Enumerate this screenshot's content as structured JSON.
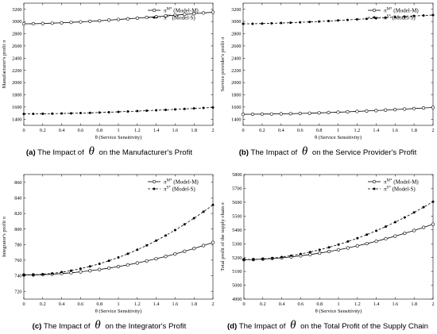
{
  "chart_data": [
    {
      "type": "line",
      "panel_label": "(a)",
      "caption_prefix": "The Impact of",
      "caption_symbol": "θ",
      "caption_suffix": "on the Manufacturer's Profit",
      "xlabel": "θ (Service Sensitivity)",
      "ylabel": "Manufacturer's profit π",
      "xlim": [
        0,
        2
      ],
      "ylim": [
        1300,
        3300
      ],
      "xticks": [
        "0",
        "0.2",
        "0.4",
        "0.6",
        "0.8",
        "1",
        "1.2",
        "1.4",
        "1.6",
        "1.8",
        "2"
      ],
      "yticks": [
        "1400",
        "1600",
        "1800",
        "2000",
        "2200",
        "2400",
        "2600",
        "2800",
        "3000",
        "3200"
      ],
      "legend_position": "top-right",
      "x": [
        0,
        0.1,
        0.2,
        0.3,
        0.4,
        0.5,
        0.6,
        0.7,
        0.8,
        0.9,
        1.0,
        1.1,
        1.2,
        1.3,
        1.4,
        1.5,
        1.6,
        1.7,
        1.8,
        1.9,
        2.0
      ],
      "series": [
        {
          "name": "π^M* (Model-M)",
          "style": "solid",
          "marker": "open-circle",
          "color": "#000000",
          "values": [
            2962,
            2963,
            2967,
            2973,
            2979,
            2986,
            2994,
            3003,
            3012,
            3022,
            3033,
            3044,
            3055,
            3067,
            3078,
            3091,
            3103,
            3116,
            3128,
            3140,
            3152
          ]
        },
        {
          "name": "π^S* (Model-S)",
          "style": "dashed",
          "marker": "filled-dot",
          "color": "#000000",
          "values": [
            1487,
            1488,
            1490,
            1492,
            1494,
            1497,
            1501,
            1505,
            1510,
            1515,
            1521,
            1527,
            1533,
            1540,
            1547,
            1554,
            1561,
            1569,
            1577,
            1585,
            1593
          ]
        }
      ]
    },
    {
      "type": "line",
      "panel_label": "(b)",
      "caption_prefix": "The Impact of",
      "caption_symbol": "θ",
      "caption_suffix": "on the Service Provider's Profit",
      "xlabel": "θ (Service Sensitivity)",
      "ylabel": "Service provider's profit π",
      "xlim": [
        0,
        2
      ],
      "ylim": [
        1300,
        3300
      ],
      "xticks": [
        "0",
        "0.2",
        "0.4",
        "0.6",
        "0.8",
        "1",
        "1.2",
        "1.4",
        "1.6",
        "1.8",
        "2"
      ],
      "yticks": [
        "1400",
        "1600",
        "1800",
        "2000",
        "2200",
        "2400",
        "2600",
        "2800",
        "3000",
        "3200"
      ],
      "legend_position": "top-right",
      "x": [
        0,
        0.1,
        0.2,
        0.3,
        0.4,
        0.5,
        0.6,
        0.7,
        0.8,
        0.9,
        1.0,
        1.1,
        1.2,
        1.3,
        1.4,
        1.5,
        1.6,
        1.7,
        1.8,
        1.9,
        2.0
      ],
      "series": [
        {
          "name": "π^M* (Model-M)",
          "style": "solid",
          "marker": "open-circle",
          "color": "#000000",
          "values": [
            1481,
            1482,
            1484,
            1486,
            1488,
            1491,
            1495,
            1499,
            1504,
            1509,
            1515,
            1521,
            1528,
            1535,
            1542,
            1550,
            1558,
            1566,
            1575,
            1584,
            1592
          ]
        },
        {
          "name": "π^S* (Model-S)",
          "style": "dashed",
          "marker": "filled-dot",
          "color": "#000000",
          "values": [
            2962,
            2963,
            2966,
            2970,
            2975,
            2980,
            2986,
            2993,
            3000,
            3008,
            3017,
            3026,
            3035,
            3044,
            3054,
            3063,
            3072,
            3081,
            3090,
            3098,
            3105
          ]
        }
      ]
    },
    {
      "type": "line",
      "panel_label": "(c)",
      "caption_prefix": "The Impact of",
      "caption_symbol": "θ",
      "caption_suffix": "on the Integrator's Profit",
      "xlabel": "θ (Service Sensitivity)",
      "ylabel": "Integrator's profit π",
      "xlim": [
        0,
        2
      ],
      "ylim": [
        710,
        870
      ],
      "xticks": [
        "0",
        "0.2",
        "0.4",
        "0.6",
        "0.8",
        "1",
        "1.2",
        "1.4",
        "1.6",
        "1.8",
        "2"
      ],
      "yticks": [
        "720",
        "740",
        "760",
        "780",
        "800",
        "820",
        "840",
        "860"
      ],
      "legend_position": "top-right",
      "x": [
        0,
        0.1,
        0.2,
        0.3,
        0.4,
        0.5,
        0.6,
        0.7,
        0.8,
        0.9,
        1.0,
        1.1,
        1.2,
        1.3,
        1.4,
        1.5,
        1.6,
        1.7,
        1.8,
        1.9,
        2.0
      ],
      "series": [
        {
          "name": "π^M* (Model-M)",
          "style": "solid",
          "marker": "open-circle",
          "color": "#000000",
          "values": [
            741,
            741.1,
            741.4,
            742.0,
            742.8,
            743.8,
            745.0,
            746.4,
            748.0,
            749.8,
            751.8,
            754.0,
            756.4,
            759.0,
            761.8,
            764.8,
            768.0,
            771.4,
            775.0,
            778.8,
            782.8
          ]
        },
        {
          "name": "π^S* (Model-S)",
          "style": "dashed",
          "marker": "filled-dot",
          "color": "#000000",
          "values": [
            741,
            741.2,
            741.9,
            743.0,
            744.6,
            746.6,
            749.1,
            752.0,
            755.4,
            759.2,
            763.5,
            768.2,
            773.4,
            779.0,
            785.1,
            791.6,
            798.6,
            806.0,
            813.9,
            822.2,
            831.0
          ]
        }
      ]
    },
    {
      "type": "line",
      "panel_label": "(d)",
      "caption_prefix": "The Impact of",
      "caption_symbol": "θ",
      "caption_suffix": "on the Total Profit of the Supply Chain",
      "xlabel": "θ (Service Sensitivity)",
      "ylabel": "Total profit of the supply chain π",
      "xlim": [
        0,
        2
      ],
      "ylim": [
        4900,
        5800
      ],
      "xticks": [
        "0",
        "0.2",
        "0.4",
        "0.6",
        "0.8",
        "1",
        "1.2",
        "1.4",
        "1.6",
        "1.8",
        "2"
      ],
      "yticks": [
        "4900",
        "5000",
        "5100",
        "5200",
        "5300",
        "5400",
        "5500",
        "5600",
        "5700",
        "5800"
      ],
      "legend_position": "top-right",
      "x": [
        0,
        0.1,
        0.2,
        0.3,
        0.4,
        0.5,
        0.6,
        0.7,
        0.8,
        0.9,
        1.0,
        1.1,
        1.2,
        1.3,
        1.4,
        1.5,
        1.6,
        1.7,
        1.8,
        1.9,
        2.0
      ],
      "series": [
        {
          "name": "π^M* (Model-M)",
          "style": "solid",
          "marker": "open-circle",
          "color": "#000000",
          "values": [
            5185,
            5186,
            5189,
            5193,
            5198,
            5205,
            5213,
            5222,
            5232,
            5244,
            5256,
            5270,
            5285,
            5301,
            5318,
            5336,
            5355,
            5375,
            5396,
            5418,
            5441
          ]
        },
        {
          "name": "π^S* (Model-S)",
          "style": "dashed",
          "marker": "filled-dot",
          "color": "#000000",
          "values": [
            5185,
            5186,
            5190,
            5196,
            5204,
            5214,
            5226,
            5240,
            5256,
            5274,
            5294,
            5316,
            5340,
            5366,
            5394,
            5424,
            5456,
            5490,
            5526,
            5564,
            5604
          ]
        }
      ]
    }
  ]
}
